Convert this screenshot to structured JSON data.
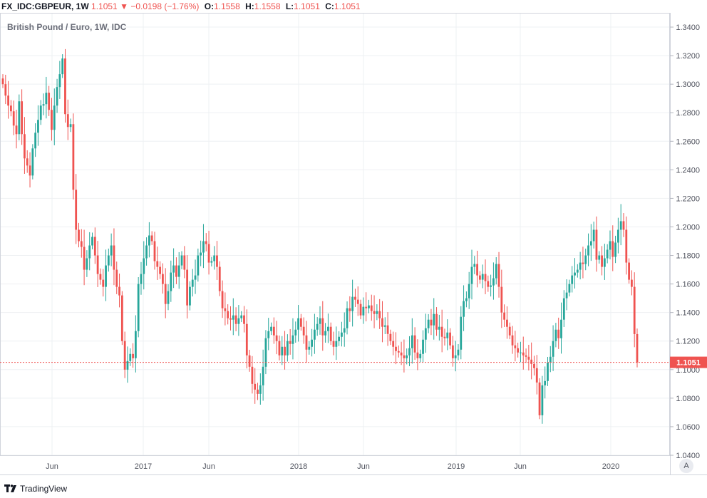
{
  "header": {
    "symbol": "FX_IDC:GBPEUR, 1W",
    "last": "1.1051",
    "change": "−0.0198 (−1.76%)",
    "open_label": "O:",
    "open": "1.1558",
    "high_label": "H:",
    "high": "1.1558",
    "low_label": "L:",
    "low": "1.1051",
    "close_label": "C:",
    "close": "1.1051"
  },
  "subtitle": "British Pound / Euro, 1W, IDC",
  "footer": {
    "brand": "TradingView"
  },
  "autoscale_label": "A",
  "colors": {
    "up": "#26a69a",
    "down": "#ef5350",
    "grid": "#eef0f3",
    "axis_text": "#50535e"
  },
  "chart_data": {
    "type": "candlestick",
    "ylim": [
      1.04,
      1.35
    ],
    "y_ticks": [
      "1.0400",
      "1.0600",
      "1.0800",
      "1.1000",
      "1.1200",
      "1.1400",
      "1.1600",
      "1.1800",
      "1.2000",
      "1.2200",
      "1.2400",
      "1.2600",
      "1.2800",
      "1.3000",
      "1.3200",
      "1.3400"
    ],
    "x_ticks": [
      "Jun",
      "2017",
      "Jun",
      "2018",
      "Jun",
      "2019",
      "Jun",
      "2020"
    ],
    "last_price_label": "1.1051",
    "last_price": 1.1051,
    "series": [
      {
        "name": "GBPEUR",
        "close": [
          1.3,
          1.292,
          1.285,
          1.281,
          1.271,
          1.265,
          1.288,
          1.265,
          1.248,
          1.243,
          1.236,
          1.255,
          1.266,
          1.275,
          1.285,
          1.286,
          1.294,
          1.282,
          1.268,
          1.285,
          1.298,
          1.307,
          1.318,
          1.279,
          1.27,
          1.272,
          1.226,
          1.198,
          1.19,
          1.186,
          1.17,
          1.178,
          1.187,
          1.193,
          1.18,
          1.167,
          1.163,
          1.158,
          1.173,
          1.18,
          1.187,
          1.17,
          1.158,
          1.152,
          1.12,
          1.1,
          1.106,
          1.111,
          1.108,
          1.127,
          1.16,
          1.167,
          1.178,
          1.187,
          1.194,
          1.19,
          1.176,
          1.172,
          1.167,
          1.16,
          1.146,
          1.155,
          1.168,
          1.173,
          1.165,
          1.173,
          1.18,
          1.17,
          1.145,
          1.158,
          1.163,
          1.166,
          1.18,
          1.182,
          1.19,
          1.188,
          1.175,
          1.176,
          1.18,
          1.172,
          1.155,
          1.143,
          1.141,
          1.136,
          1.135,
          1.138,
          1.132,
          1.136,
          1.138,
          1.132,
          1.11,
          1.102,
          1.09,
          1.086,
          1.083,
          1.089,
          1.102,
          1.122,
          1.127,
          1.13,
          1.124,
          1.12,
          1.11,
          1.116,
          1.11,
          1.12,
          1.118,
          1.124,
          1.128,
          1.136,
          1.13,
          1.124,
          1.114,
          1.116,
          1.121,
          1.128,
          1.132,
          1.136,
          1.124,
          1.127,
          1.13,
          1.12,
          1.116,
          1.12,
          1.123,
          1.126,
          1.129,
          1.143,
          1.141,
          1.151,
          1.149,
          1.146,
          1.138,
          1.144,
          1.143,
          1.145,
          1.141,
          1.139,
          1.141,
          1.136,
          1.13,
          1.131,
          1.125,
          1.12,
          1.116,
          1.113,
          1.112,
          1.11,
          1.108,
          1.11,
          1.115,
          1.124,
          1.112,
          1.108,
          1.111,
          1.121,
          1.129,
          1.135,
          1.131,
          1.139,
          1.128,
          1.13,
          1.123,
          1.122,
          1.126,
          1.117,
          1.108,
          1.11,
          1.114,
          1.137,
          1.148,
          1.15,
          1.16,
          1.172,
          1.174,
          1.166,
          1.163,
          1.167,
          1.162,
          1.158,
          1.159,
          1.164,
          1.174,
          1.158,
          1.14,
          1.135,
          1.13,
          1.124,
          1.117,
          1.115,
          1.112,
          1.112,
          1.11,
          1.109,
          1.107,
          1.104,
          1.101,
          1.091,
          1.068,
          1.089,
          1.092,
          1.105,
          1.109,
          1.12,
          1.128,
          1.122,
          1.135,
          1.15,
          1.154,
          1.16,
          1.166,
          1.168,
          1.17,
          1.175,
          1.174,
          1.18,
          1.187,
          1.19,
          1.198,
          1.177,
          1.18,
          1.172,
          1.178,
          1.184,
          1.19,
          1.179,
          1.189,
          1.198,
          1.204,
          1.198,
          1.175,
          1.163,
          1.158,
          1.1249,
          1.1051
        ]
      }
    ]
  }
}
